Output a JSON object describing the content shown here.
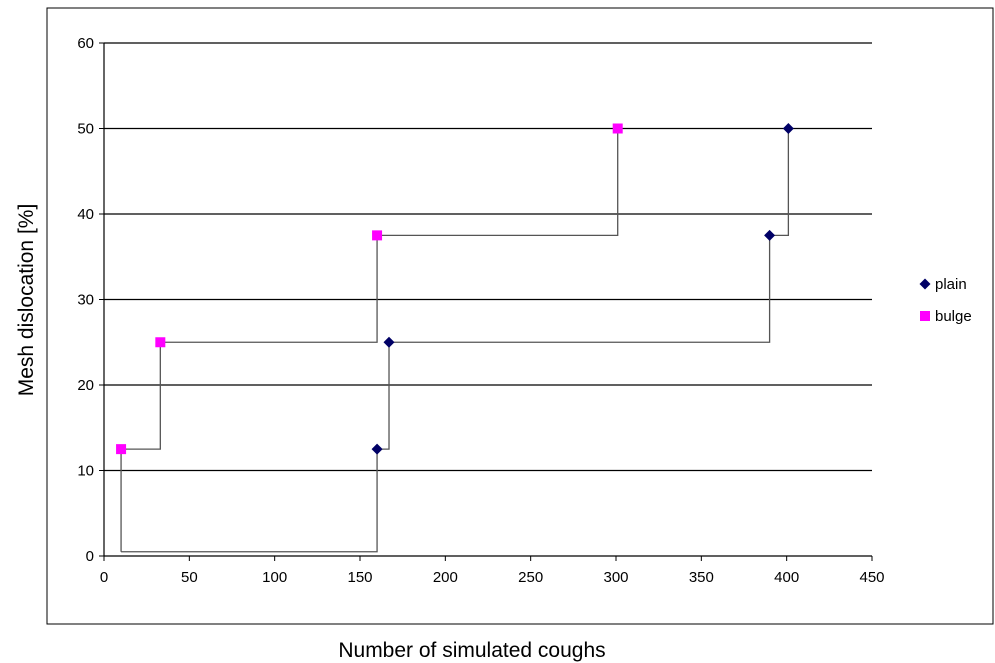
{
  "chart_data": {
    "type": "scatter",
    "title": "",
    "xlabel": "Number of simulated coughs",
    "ylabel": "Mesh dislocation [%]",
    "xlim": [
      0,
      450
    ],
    "ylim": [
      0,
      60
    ],
    "x_ticks": [
      0,
      50,
      100,
      150,
      200,
      250,
      300,
      350,
      400,
      450
    ],
    "y_ticks": [
      0,
      10,
      20,
      30,
      40,
      50,
      60
    ],
    "grid": "horizontal",
    "legend_position": "right",
    "series": [
      {
        "name": "plain",
        "marker": "diamond",
        "color": "#000066",
        "points": [
          [
            160,
            12.5
          ],
          [
            167,
            25
          ],
          [
            390,
            37.5
          ],
          [
            401,
            50
          ]
        ]
      },
      {
        "name": "bulge",
        "marker": "square",
        "color": "#ff00ff",
        "points": [
          [
            10,
            12.5
          ],
          [
            33,
            25
          ],
          [
            160,
            37.5
          ],
          [
            301,
            50
          ]
        ]
      }
    ],
    "step_lines": {
      "color": "#000000",
      "plain": [
        [
          10,
          0.5
        ],
        [
          160,
          0.5
        ],
        [
          160,
          12.5
        ],
        [
          167,
          12.5
        ],
        [
          167,
          25
        ],
        [
          390,
          25
        ],
        [
          390,
          37.5
        ],
        [
          401,
          37.5
        ],
        [
          401,
          50
        ]
      ],
      "bulge": [
        [
          10,
          0.5
        ],
        [
          10,
          12.5
        ],
        [
          33,
          12.5
        ],
        [
          33,
          25
        ],
        [
          160,
          25
        ],
        [
          160,
          37.5
        ],
        [
          301,
          37.5
        ],
        [
          301,
          50
        ]
      ]
    }
  }
}
